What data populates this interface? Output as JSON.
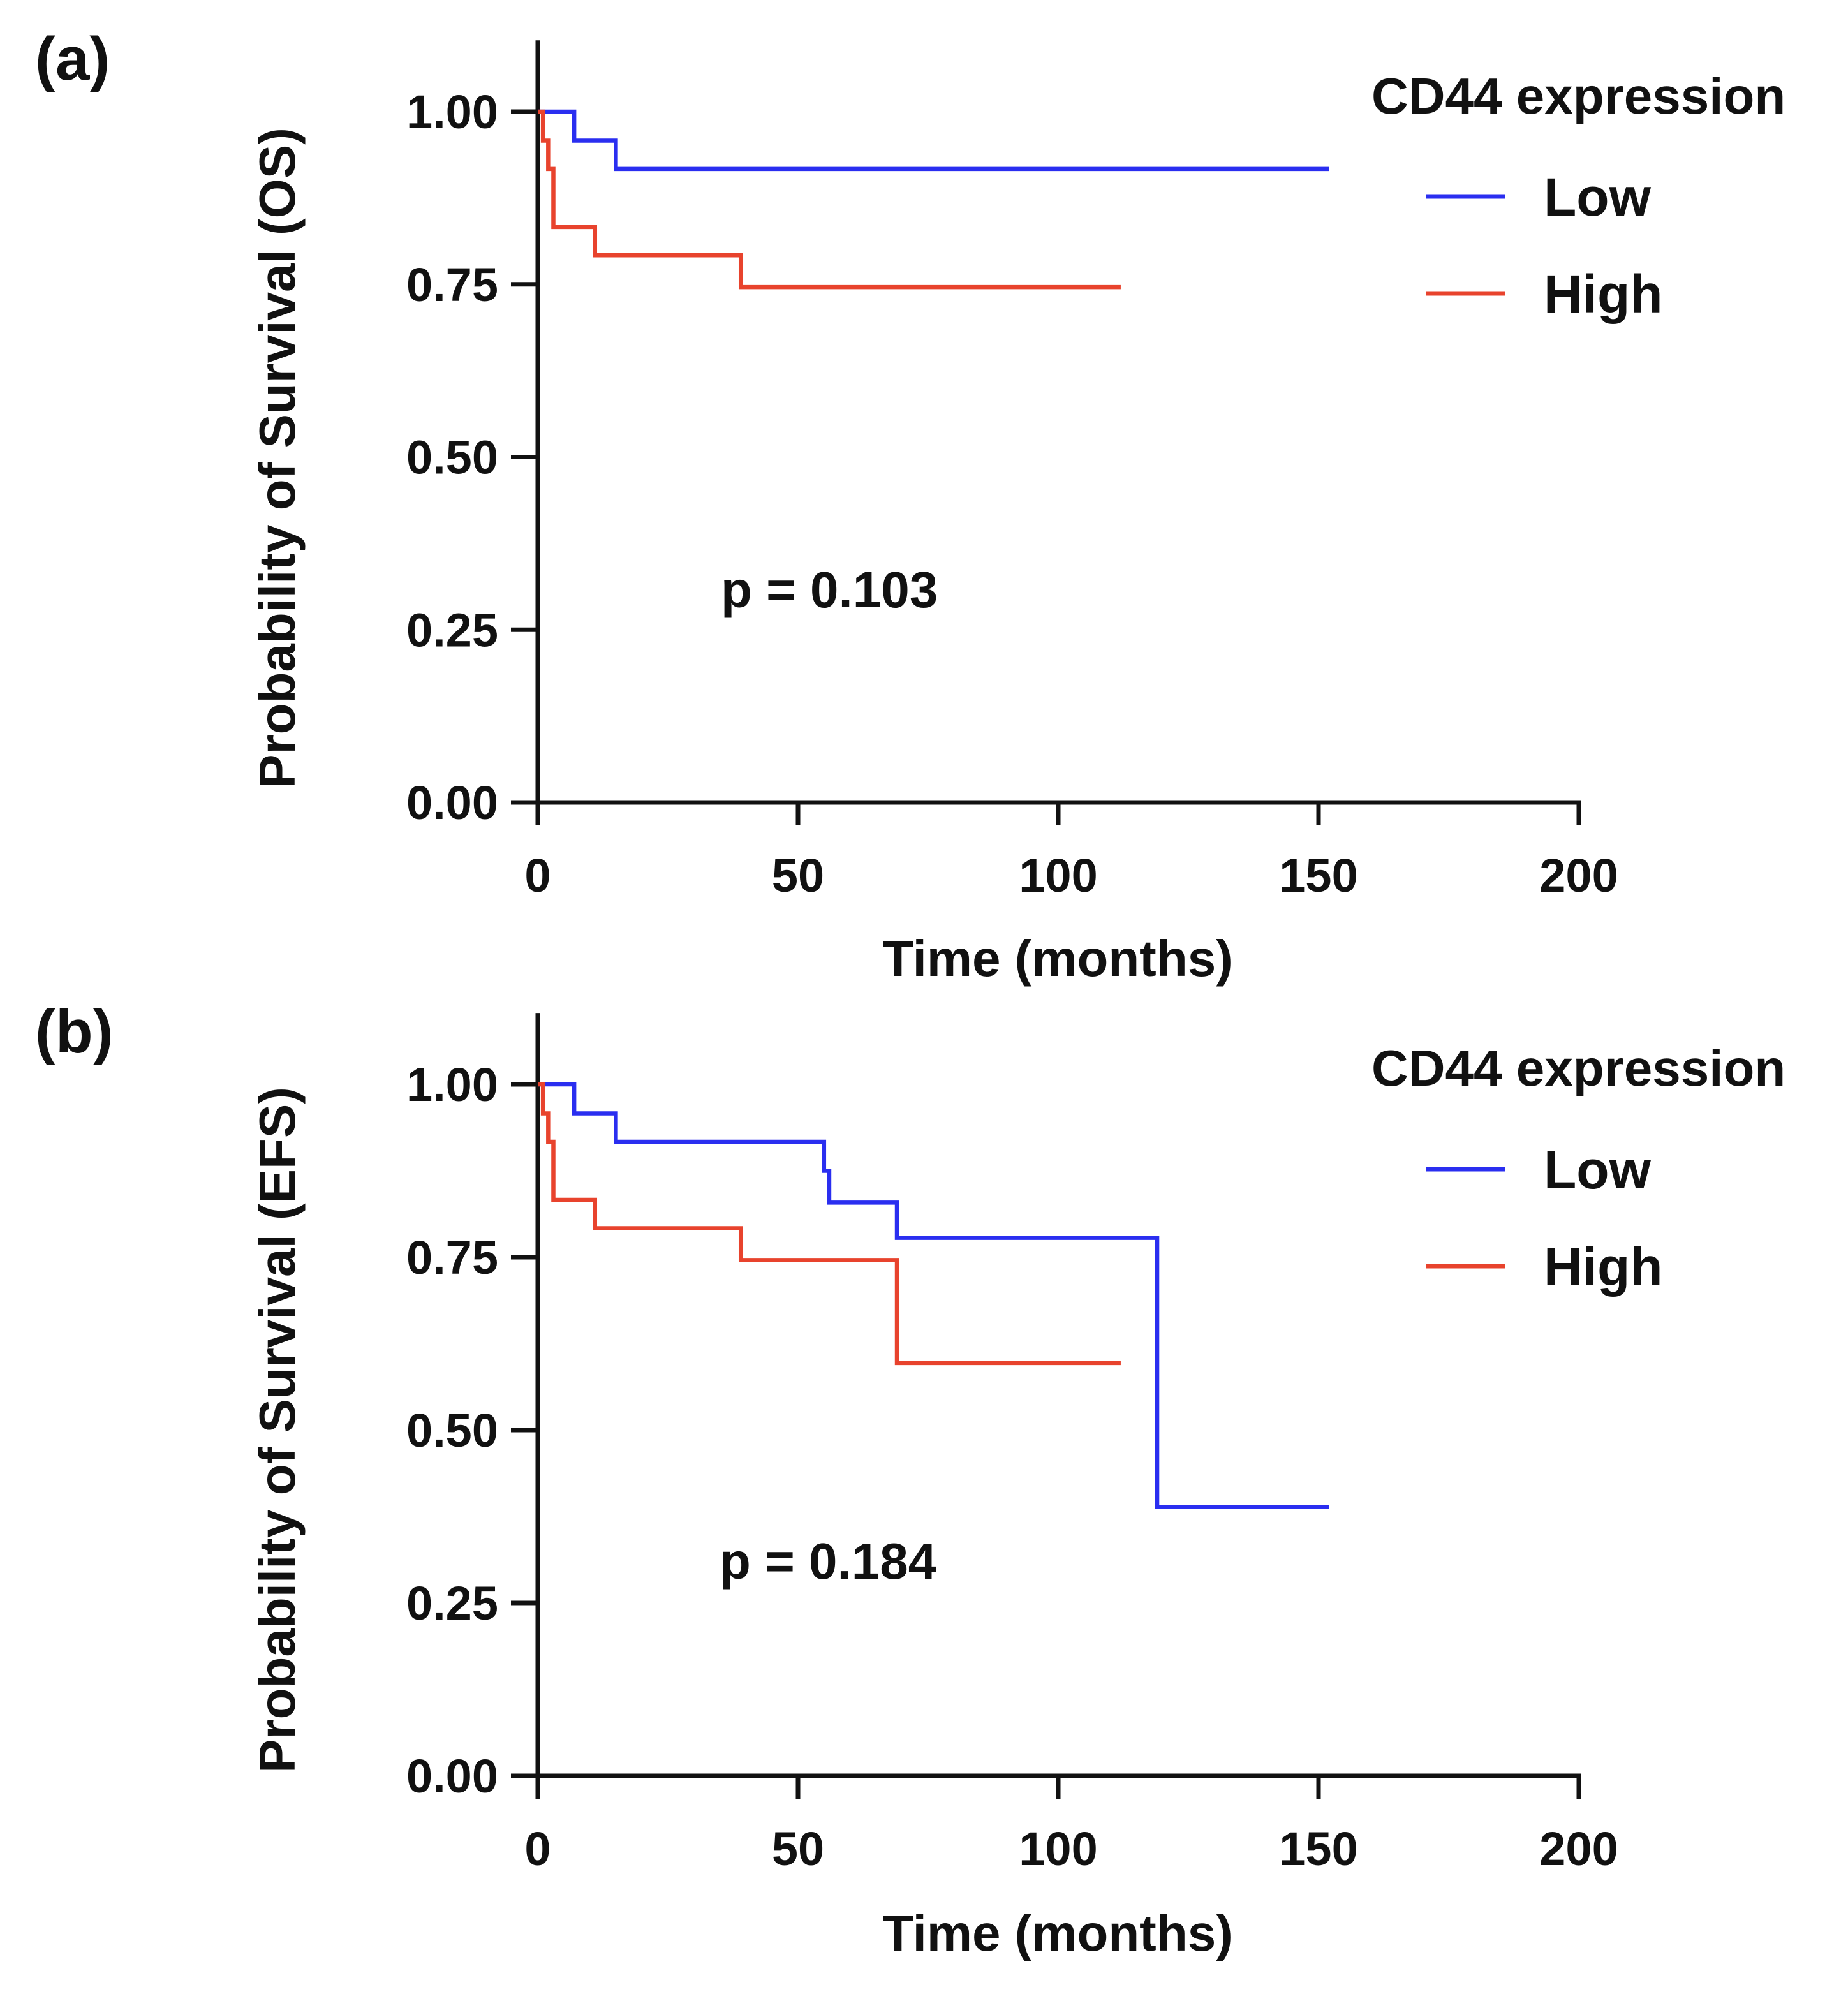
{
  "chart_data": [
    {
      "type": "line",
      "panel_label": "(a)",
      "title": "",
      "xlabel": "Time (months)",
      "ylabel": "Probability of Survival (OS)",
      "xlim": [
        0,
        200
      ],
      "ylim": [
        0,
        1.1
      ],
      "xticks": [
        0,
        50,
        100,
        150,
        200
      ],
      "xtick_labels": [
        "0",
        "50",
        "100",
        "150",
        "200"
      ],
      "yticks": [
        0,
        0.25,
        0.5,
        0.75,
        1.0
      ],
      "ytick_labels": [
        "0.00",
        "0.25",
        "0.50",
        "0.75",
        "1.00"
      ],
      "step": true,
      "legend_title": "CD44 expression",
      "legend_position": "top-right",
      "annotation": "p = 0.103",
      "series": [
        {
          "name": "Low",
          "color": "#2a2ef0",
          "x": [
            0,
            7,
            15,
            152
          ],
          "y": [
            1.0,
            0.958,
            0.917,
            0.917
          ]
        },
        {
          "name": "High",
          "color": "#e8432d",
          "x": [
            0,
            1,
            2,
            3,
            11,
            39,
            112
          ],
          "y": [
            1.0,
            0.958,
            0.917,
            0.833,
            0.792,
            0.746,
            0.746
          ]
        }
      ]
    },
    {
      "type": "line",
      "panel_label": "(b)",
      "title": "",
      "xlabel": "Time (months)",
      "ylabel": "Probability of Survival (EFS)",
      "xlim": [
        0,
        200
      ],
      "ylim": [
        0,
        1.1
      ],
      "xticks": [
        0,
        50,
        100,
        150,
        200
      ],
      "xtick_labels": [
        "0",
        "50",
        "100",
        "150",
        "200"
      ],
      "yticks": [
        0,
        0.25,
        0.5,
        0.75,
        1.0
      ],
      "ytick_labels": [
        "0.00",
        "0.25",
        "0.50",
        "0.75",
        "1.00"
      ],
      "step": true,
      "legend_title": "CD44 expression",
      "legend_position": "top-right",
      "annotation": "p = 0.184",
      "series": [
        {
          "name": "Low",
          "color": "#2a2ef0",
          "x": [
            0,
            7,
            15,
            55,
            56,
            69,
            119,
            152
          ],
          "y": [
            1.0,
            0.958,
            0.917,
            0.875,
            0.829,
            0.778,
            0.389,
            0.389
          ]
        },
        {
          "name": "High",
          "color": "#e8432d",
          "x": [
            0,
            1,
            2,
            3,
            11,
            39,
            69,
            112
          ],
          "y": [
            1.0,
            0.958,
            0.917,
            0.833,
            0.792,
            0.746,
            0.597,
            0.597
          ]
        }
      ]
    }
  ]
}
